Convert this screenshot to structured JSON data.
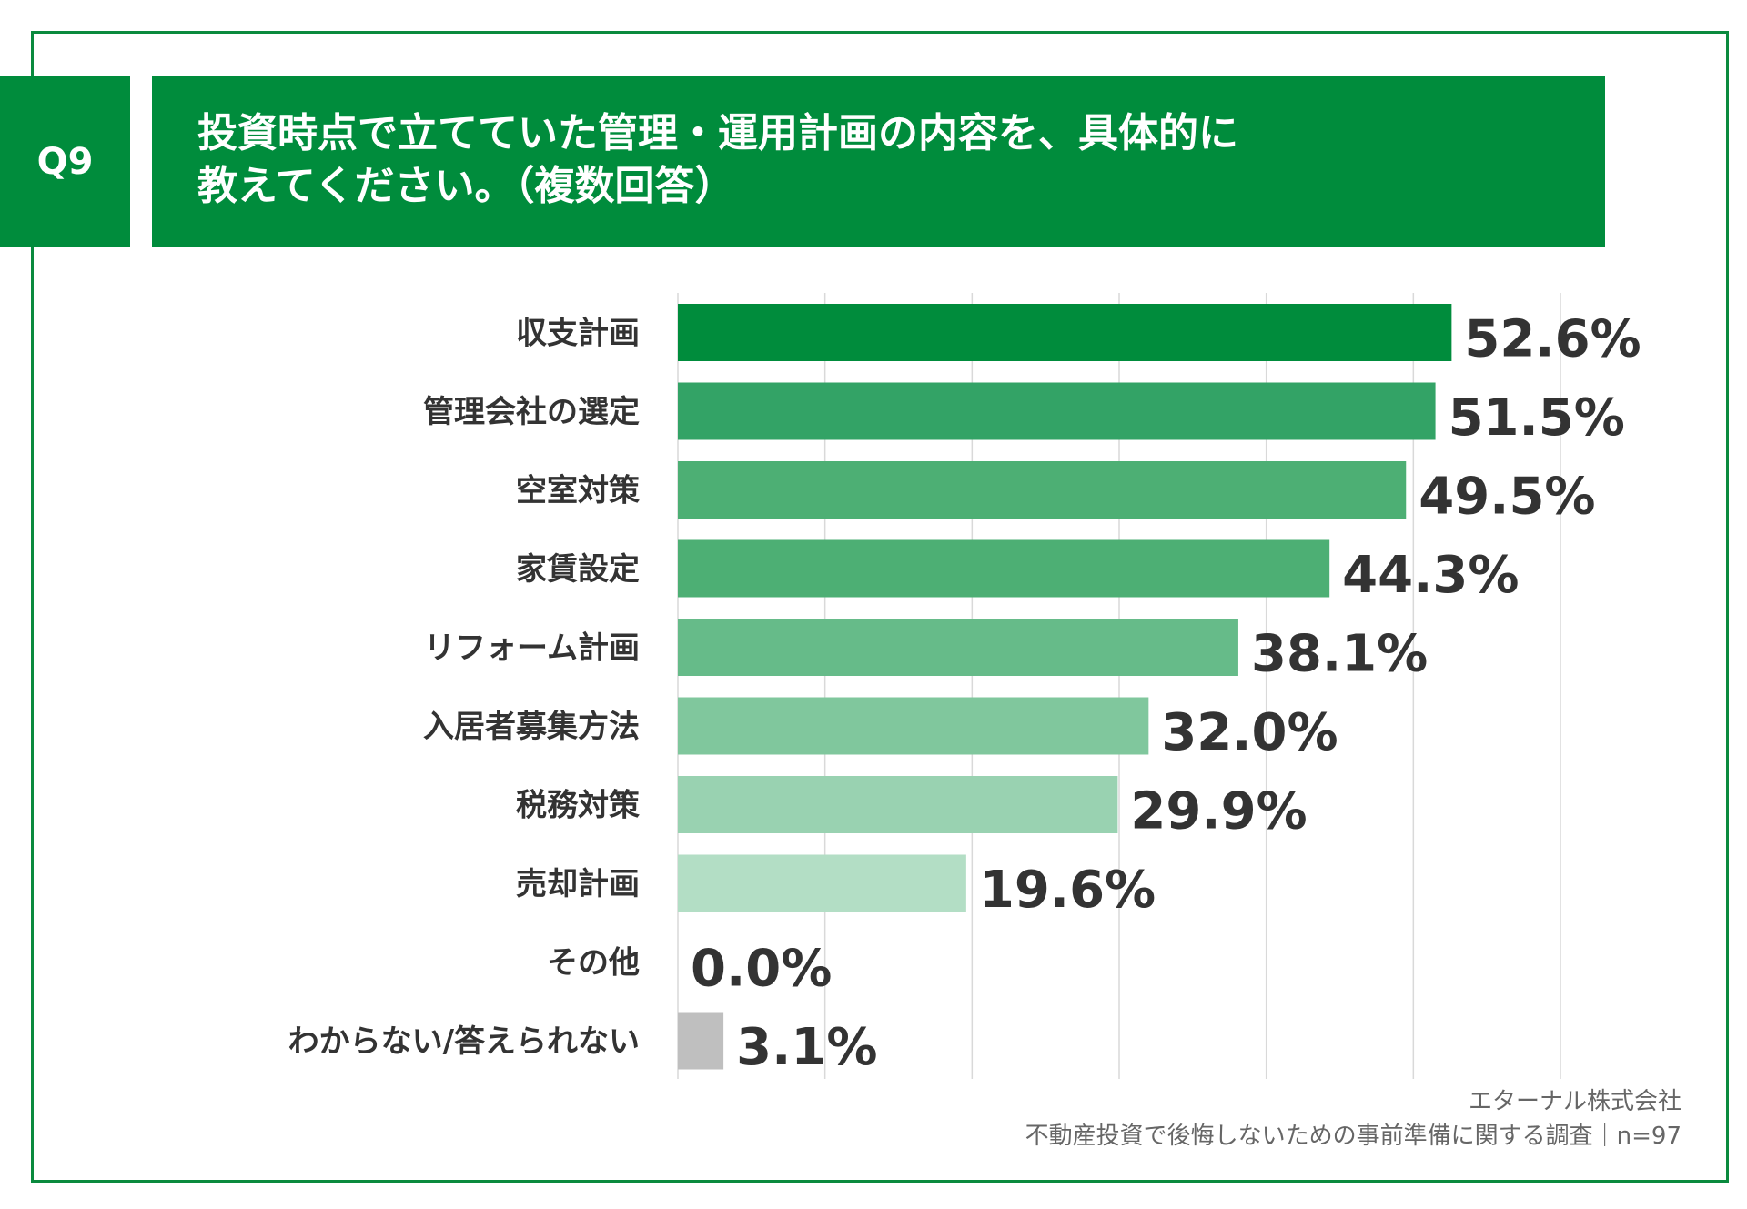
{
  "question": {
    "number": "Q9",
    "title_line1": "投資時点で立てていた管理・運用計画の内容を、具体的に",
    "title_line2": "教えてください。（複数回答）"
  },
  "chart_data": {
    "type": "bar",
    "orientation": "horizontal",
    "categories": [
      "収支計画",
      "管理会社の選定",
      "空室対策",
      "家賃設定",
      "リフォーム計画",
      "入居者募集方法",
      "税務対策",
      "売却計画",
      "その他",
      "わからない/答えられない"
    ],
    "values": [
      52.6,
      51.5,
      49.5,
      44.3,
      38.1,
      32.0,
      29.9,
      19.6,
      0.0,
      3.1
    ],
    "value_labels": [
      "52.6%",
      "51.5%",
      "49.5%",
      "44.3%",
      "38.1%",
      "32.0%",
      "29.9%",
      "19.6%",
      "0.0%",
      "3.1%"
    ],
    "colors": [
      "#008c3c",
      "#33a366",
      "#4daf74",
      "#4daf74",
      "#66bb89",
      "#80c79d",
      "#99d2b1",
      "#b3dec5",
      "#b3dec5",
      "#bfbfbf"
    ],
    "xlim": [
      0,
      60
    ],
    "grid": true,
    "legend": "none"
  },
  "footer": {
    "company": "エターナル株式会社",
    "survey": "不動産投資で後悔しないための事前準備に関する調査｜n=97"
  }
}
